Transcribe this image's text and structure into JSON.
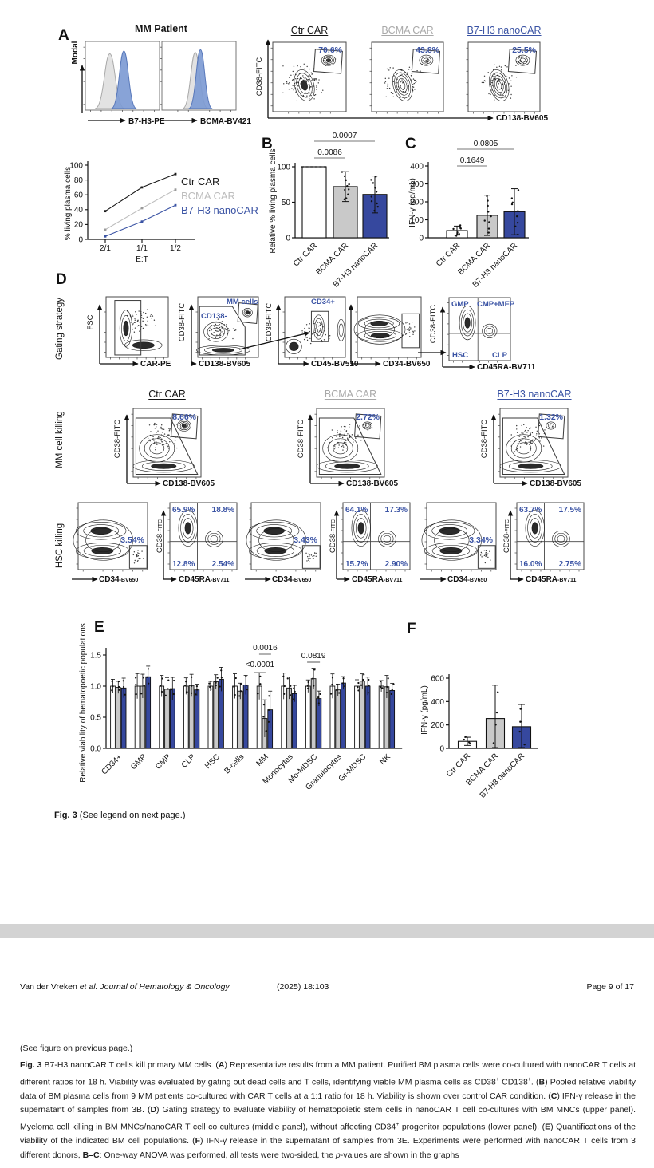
{
  "colors": {
    "blue_text": "#3A53A4",
    "blue_bar": "#36489E",
    "gray_bar": "#C9C9C9",
    "gray_text": "#A9A9A9",
    "line_gray": "#BDBDBD",
    "band": "#D3D3D3"
  },
  "panelA": {
    "label": "A",
    "patient_header": "MM Patient",
    "hist": {
      "ylabel": "Modal",
      "x1": "B7-H3-PE",
      "x2": "BCMA-BV421"
    },
    "flow_ylabel": "CD38-FITC",
    "flow_xlabel": "CD138-BV605",
    "conditions": [
      {
        "name": "Ctr CAR",
        "pct": "70.6%"
      },
      {
        "name": "BCMA CAR",
        "pct": "43.8%"
      },
      {
        "name": "B7-H3 nanoCAR",
        "pct": "25.5%"
      }
    ],
    "line_chart": {
      "type": "line",
      "ylabel": "% living plasma cells",
      "xlabel": "E:T",
      "xticks": [
        "2/1",
        "1/1",
        "1/2"
      ],
      "yticks": [
        0,
        20,
        40,
        60,
        80,
        100
      ],
      "ymax": 100,
      "series": [
        {
          "name": "Ctr CAR",
          "color": "#1A1A1A",
          "values": [
            38,
            70,
            88
          ]
        },
        {
          "name": "BCMA CAR",
          "color": "#BDBDBD",
          "values": [
            13,
            42,
            67
          ]
        },
        {
          "name": "B7-H3 nanoCAR",
          "color": "#3A53A4",
          "values": [
            4,
            24,
            46
          ]
        }
      ]
    }
  },
  "panelB": {
    "label": "B",
    "type": "bar",
    "ylabel": "Relative % living plasma cells",
    "yticks": [
      0,
      50,
      100
    ],
    "ymax": 100,
    "bars": [
      {
        "label": "Ctr CAR",
        "value": 100,
        "err": 0,
        "style": "white",
        "dashed_top": true
      },
      {
        "label": "BCMA CAR",
        "value": 72,
        "err": 21,
        "style": "gray"
      },
      {
        "label": "B7-H3 nanoCAR",
        "value": 61,
        "err": 26,
        "style": "blue"
      }
    ],
    "sig": [
      {
        "label": "0.0086",
        "from": 0,
        "to": 1
      },
      {
        "label": "0.0007",
        "from": 0,
        "to": 2
      }
    ]
  },
  "panelC": {
    "label": "C",
    "type": "bar",
    "ylabel": "IFN-γ (pg/mL)",
    "yticks": [
      0,
      100,
      200,
      300,
      400
    ],
    "ymax": 400,
    "bars": [
      {
        "label": "Ctr CAR",
        "value": 40,
        "err": 25,
        "style": "white"
      },
      {
        "label": "BCMA CAR",
        "value": 125,
        "err": 112,
        "style": "gray"
      },
      {
        "label": "B7-H3 nanoCAR",
        "value": 145,
        "err": 128,
        "style": "blue"
      }
    ],
    "sig": [
      {
        "label": "0.1649",
        "from": 0,
        "to": 1
      },
      {
        "label": "0.0805",
        "from": 0,
        "to": 2
      }
    ]
  },
  "panelD": {
    "label": "D",
    "row_labels": [
      "Gating strategy",
      "MM cell killing",
      "HSC killing"
    ],
    "gating": {
      "p1": {
        "ylabel": "FSC",
        "xlabel": "CAR-PE"
      },
      "p2": {
        "ylabel": "CD38-FITC",
        "xlabel": "CD138-BV605",
        "gate_big": "CD138-",
        "gate_small": "MM cells"
      },
      "p3": {
        "ylabel": "CD38-FITC",
        "xlabel": "CD45-BV510",
        "gate": "CD34+"
      },
      "p4": {
        "xlabel": "CD34-BV650"
      },
      "p5": {
        "ylabel": "CD38-FITC",
        "xlabel": "CD45RA-BV711",
        "quadrants": [
          "GMP",
          "CMP+MEP",
          "HSC",
          "CLP"
        ]
      }
    },
    "mm_killing": {
      "ylabel": "CD38-FITC",
      "xlabel": "CD138-BV605",
      "cols": [
        {
          "name": "Ctr CAR",
          "pct": "8.66%"
        },
        {
          "name": "BCMA CAR",
          "pct": "2.72%"
        },
        {
          "name": "B7-H3 nanoCAR",
          "pct": "1.32%"
        }
      ]
    },
    "hsc_killing": {
      "ylabel_main": "CD38",
      "ylabel_sub": "-FITC",
      "cd34_xlabel_main": "CD34",
      "cd34_xlabel_sub": "-BV650",
      "cd45_xlabel_main": "CD45RA",
      "cd45_xlabel_sub": "-BV711",
      "cols": [
        {
          "cd34_pct": "3.54%",
          "q": [
            "65.9%",
            "18.8%",
            "12.8%",
            "2.54%"
          ]
        },
        {
          "cd34_pct": "3.43%",
          "q": [
            "64.1%",
            "17.3%",
            "15.7%",
            "2.90%"
          ]
        },
        {
          "cd34_pct": "3.34%",
          "q": [
            "63.7%",
            "17.5%",
            "16.0%",
            "2.75%"
          ]
        }
      ]
    }
  },
  "panelE": {
    "label": "E",
    "type": "grouped-bar",
    "ylabel": "Relative viability of hematopoetic populations",
    "yticks": [
      "0.0",
      "0.5",
      "1.0",
      "1.5"
    ],
    "ymax": 1.5,
    "categories": [
      "CD34+",
      "GMP",
      "CMP",
      "CLP",
      "HSC",
      "B-cells",
      "MM",
      "Monocytes",
      "Mo-MDSC",
      "Granulocytes",
      "Gr-MDSC",
      "NK"
    ],
    "series": [
      {
        "name": "Ctr CAR",
        "style": "white",
        "values": [
          1,
          1,
          1,
          1,
          1,
          1,
          1,
          1,
          1,
          1,
          1,
          1
        ]
      },
      {
        "name": "BCMA CAR",
        "style": "gray",
        "values": [
          0.98,
          1.0,
          0.95,
          1.01,
          1.07,
          0.92,
          0.48,
          0.97,
          1.12,
          0.94,
          1.08,
          0.99
        ]
      },
      {
        "name": "B7-H3 nanoCAR",
        "style": "blue",
        "values": [
          0.97,
          1.15,
          0.96,
          0.94,
          1.11,
          1.02,
          0.62,
          0.88,
          0.8,
          1.05,
          1.0,
          0.93
        ]
      }
    ],
    "sig": [
      {
        "label": "0.0016",
        "group": 6
      },
      {
        "label": "<0.0001",
        "group": 6
      },
      {
        "label": "0.0819",
        "group": 8
      }
    ]
  },
  "panelF": {
    "label": "F",
    "type": "bar",
    "ylabel": "IFN-γ (pg/mL)",
    "yticks": [
      0,
      200,
      400,
      600
    ],
    "ymax": 600,
    "bars": [
      {
        "label": "Ctr CAR",
        "value": 60,
        "err": 35,
        "style": "white"
      },
      {
        "label": "BCMA CAR",
        "value": 255,
        "err": 285,
        "style": "gray"
      },
      {
        "label": "B7-H3 nanoCAR",
        "value": 185,
        "err": 190,
        "style": "blue"
      }
    ],
    "sig": []
  },
  "caption": {
    "bold": "Fig. 3",
    "rest": " (See legend on next page.)"
  },
  "running_head": {
    "left_plain": "Van der Vreken ",
    "left_italic": "et al. Journal of Hematology & Oncology",
    "middle": "(2025) 18:103",
    "right": "Page 9 of 17"
  },
  "legend": {
    "note": "(See figure on previous page.)",
    "segments": [
      {
        "t": "Fig. 3",
        "b": 1
      },
      {
        "t": "  B7-H3 nanoCAR T cells kill primary MM cells. ("
      },
      {
        "t": "A",
        "b": 1
      },
      {
        "t": ") Representative results from a MM patient. Purified BM plasma cells were co-cultured with nanoCAR T cells at different ratios for 18 h. Viability was evaluated by gating out dead cells and T cells, identifying viable MM plasma cells as CD38"
      },
      {
        "t": "+",
        "sup": 1
      },
      {
        "t": " CD138"
      },
      {
        "t": "+",
        "sup": 1
      },
      {
        "t": ". ("
      },
      {
        "t": "B",
        "b": 1
      },
      {
        "t": ") Pooled relative viability data of BM plasma cells from 9 MM patients co-cultured with CAR T cells at a 1:1 ratio for 18 h. Viability is shown over control CAR condition. ("
      },
      {
        "t": "C",
        "b": 1
      },
      {
        "t": ") IFN-γ release in the supernatant of samples from 3B. ("
      },
      {
        "t": "D",
        "b": 1
      },
      {
        "t": ") Gating strategy to evaluate viability of hematopoietic stem cells in nanoCAR T cell co-cultures with BM MNCs (upper panel). Myeloma cell killing in BM MNCs/nanoCAR T cell co-cultures (middle panel), without affecting CD34"
      },
      {
        "t": "+",
        "sup": 1
      },
      {
        "t": " progenitor populations (lower panel). ("
      },
      {
        "t": "E",
        "b": 1
      },
      {
        "t": ") Quantifications of the viability of the indicated BM cell populations. ("
      },
      {
        "t": "F",
        "b": 1
      },
      {
        "t": ") IFN-γ release in the supernatant of samples from 3E. Experiments were performed with nanoCAR T cells from 3 different donors, "
      },
      {
        "t": "B–C",
        "b": 1
      },
      {
        "t": ": One-way ANOVA was performed, all tests were two-sided, the "
      },
      {
        "t": "p",
        "i": 1
      },
      {
        "t": "-values are shown in the graphs"
      }
    ]
  }
}
